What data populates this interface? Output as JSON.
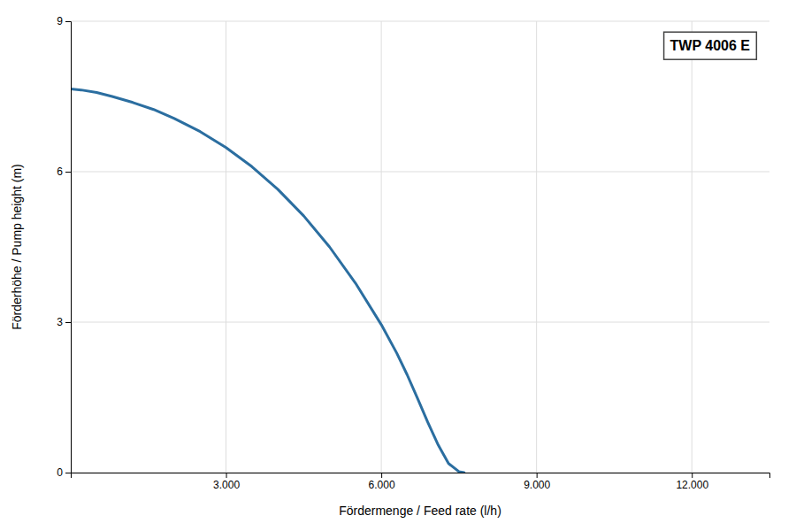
{
  "chart_data": {
    "type": "line",
    "title": "TWP 4006 E",
    "x_label": "Fördermenge / Feed rate (l/h)",
    "y_label": "Förderhöhe / Pump height (m)",
    "x": [
      0,
      200,
      500,
      800,
      1200,
      1600,
      2000,
      2500,
      3000,
      3500,
      4000,
      4500,
      5000,
      5500,
      6000,
      6300,
      6500,
      6700,
      6900,
      7100,
      7300,
      7500,
      7600
    ],
    "series": [
      {
        "color": "#2b6ea0",
        "values": [
          7.65,
          7.63,
          7.58,
          7.5,
          7.38,
          7.24,
          7.06,
          6.8,
          6.48,
          6.1,
          5.65,
          5.12,
          4.5,
          3.78,
          2.95,
          2.38,
          1.95,
          1.48,
          1.0,
          0.55,
          0.18,
          0.02,
          0.0
        ]
      }
    ],
    "xlim": [
      0,
      13500
    ],
    "ylim": [
      0,
      9
    ],
    "xticks": [
      {
        "value": 3000,
        "label": "3.000"
      },
      {
        "value": 6000,
        "label": "6.000"
      },
      {
        "value": 9000,
        "label": "9.000"
      },
      {
        "value": 12000,
        "label": "12.000"
      }
    ],
    "yticks": [
      0,
      3,
      6,
      9
    ],
    "grid": true
  }
}
